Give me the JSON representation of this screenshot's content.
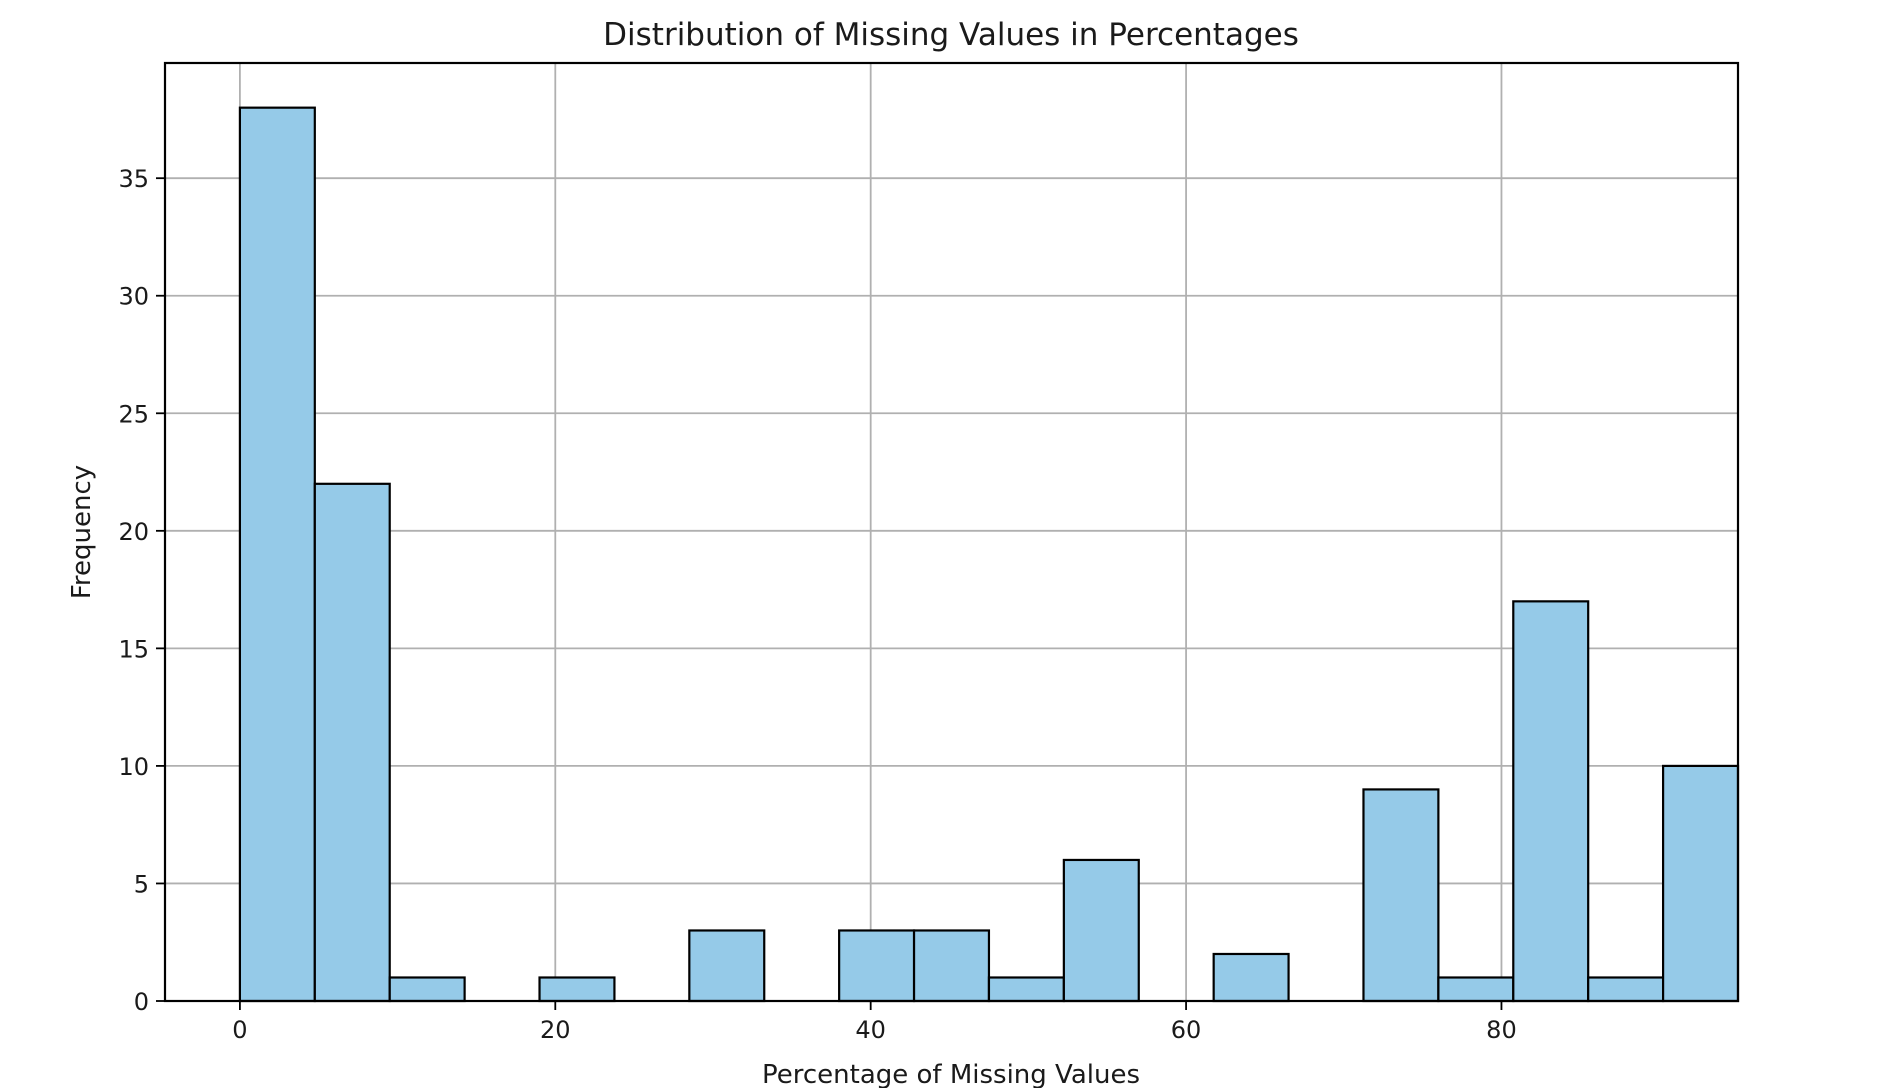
{
  "chart_data": {
    "type": "bar",
    "title": "Distribution of Missing Values in Percentages",
    "xlabel": "Percentage of Missing Values",
    "ylabel": "Frequency",
    "bin_edges": [
      0,
      4.75,
      9.5,
      14.25,
      19,
      23.75,
      28.5,
      33.25,
      38,
      42.75,
      47.5,
      52.25,
      57,
      61.75,
      66.5,
      71.25,
      76,
      80.75,
      85.5,
      90.25,
      95
    ],
    "values": [
      38,
      22,
      1,
      0,
      1,
      0,
      3,
      0,
      3,
      3,
      1,
      6,
      0,
      2,
      0,
      9,
      1,
      17,
      1,
      10
    ],
    "xlim": [
      -4.75,
      95
    ],
    "ylim": [
      0,
      39.9
    ],
    "xticks": [
      0,
      20,
      40,
      60,
      80
    ],
    "yticks": [
      0,
      5,
      10,
      15,
      20,
      25,
      30,
      35
    ],
    "grid": true,
    "bar_color": "#95cae8",
    "edge_color": "#000000"
  }
}
